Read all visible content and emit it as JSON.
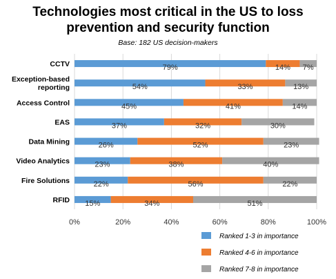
{
  "chart_data": {
    "type": "bar",
    "orientation": "horizontal",
    "stacked": true,
    "title": "Technologies most critical in the US to loss prevention and security function",
    "subtitle": "Base: 182 US decision-makers",
    "categories": [
      "CCTV",
      "Exception-based reporting",
      "Access Control",
      "EAS",
      "Data Mining",
      "Video Analytics",
      "Fire Solutions",
      "RFID"
    ],
    "series": [
      {
        "name": "Ranked 1-3 in importance",
        "color": "#5b9bd5",
        "values": [
          79,
          54,
          45,
          37,
          26,
          23,
          22,
          15
        ],
        "labels": [
          "79%",
          "54%",
          "45%",
          "37%",
          "26%",
          "23%",
          "22%",
          "15%"
        ]
      },
      {
        "name": "Ranked 4-6 in importance",
        "color": "#ed7d31",
        "values": [
          14,
          33,
          41,
          32,
          52,
          38,
          56,
          34
        ],
        "labels": [
          "14%",
          "33%",
          "41%",
          "32%",
          "52%",
          "38%",
          "56%",
          "34%"
        ]
      },
      {
        "name": "Ranked 7-8 in importance",
        "color": "#a5a5a5",
        "values": [
          7,
          13,
          14,
          30,
          23,
          40,
          22,
          51
        ],
        "labels": [
          "7%",
          "13%",
          "14%",
          "30%",
          "23%",
          "40%",
          "22%",
          "51%"
        ]
      }
    ],
    "xlim": [
      0,
      100
    ],
    "xticks": [
      "0%",
      "20%",
      "40%",
      "60%",
      "80%",
      "100%"
    ],
    "grid": true,
    "legend": "bottom-right"
  }
}
